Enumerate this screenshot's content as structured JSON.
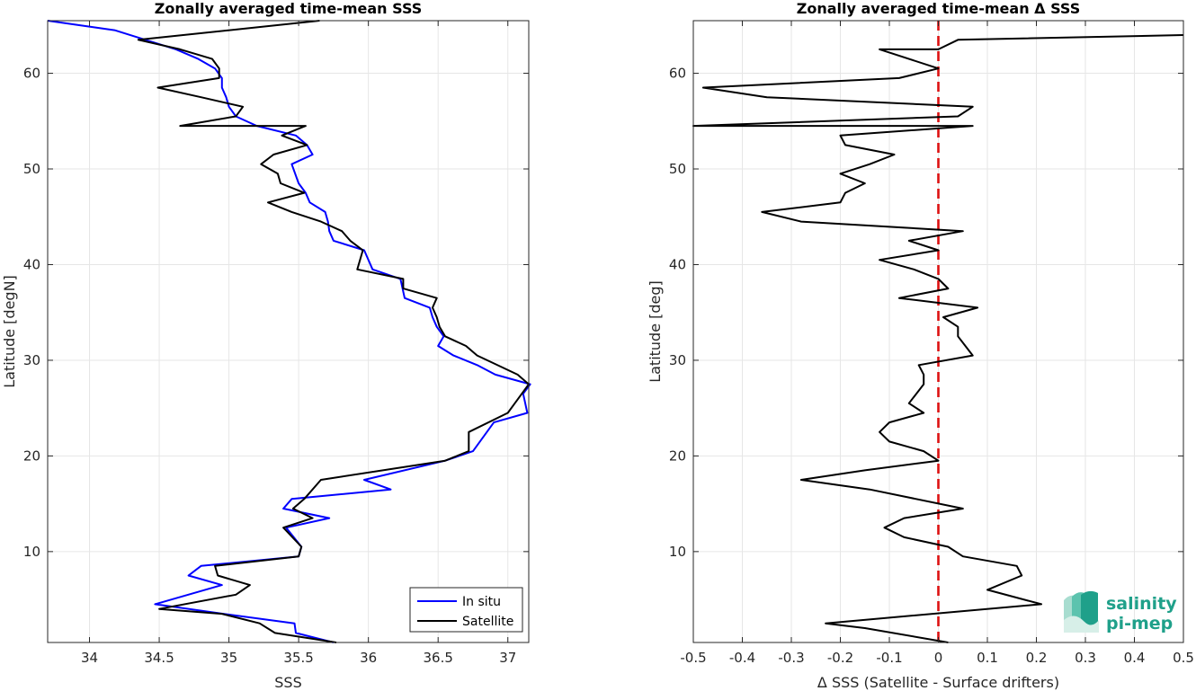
{
  "colors": {
    "insitu": "#0000ff",
    "satellite": "#000000",
    "zero_line": "#dd1111",
    "logo": "#1fa08a",
    "grid": "#e6e6e6",
    "axis": "#262626"
  },
  "logo": {
    "line1": "salinity",
    "line2": "pi-mep",
    "icon": "wave-layers-icon"
  },
  "chart_data": [
    {
      "type": "line",
      "title": "Zonally averaged time-mean SSS",
      "xlabel": "SSS",
      "ylabel": "Latitude [degN]",
      "xlim": [
        33.7,
        37.15
      ],
      "ylim": [
        0.5,
        65.5
      ],
      "xticks": [
        34,
        34.5,
        35,
        35.5,
        36,
        36.5,
        37
      ],
      "xtick_labels": [
        "34",
        "34.5",
        "35",
        "35.5",
        "36",
        "36.5",
        "37"
      ],
      "yticks": [
        10,
        20,
        30,
        40,
        50,
        60
      ],
      "ytick_labels": [
        "10",
        "20",
        "30",
        "40",
        "50",
        "60"
      ],
      "grid": true,
      "legend": "bottom-right",
      "series": [
        {
          "name": "In situ",
          "color_key": "insitu",
          "x": [
            35.75,
            35.48,
            35.47,
            34.96,
            34.47,
            34.95,
            34.71,
            34.8,
            35.5,
            35.52,
            35.41,
            35.72,
            35.39,
            35.45,
            36.16,
            35.97,
            36.55,
            36.75,
            36.9,
            37.14,
            37.11,
            37.16,
            36.91,
            36.78,
            36.61,
            36.5,
            36.54,
            36.49,
            36.46,
            36.44,
            36.26,
            36.23,
            36.03,
            35.97,
            35.75,
            35.72,
            35.71,
            35.69,
            35.58,
            35.55,
            35.5,
            35.45,
            35.6,
            35.56,
            35.48,
            35.2,
            35.05,
            35.0,
            34.98,
            34.95,
            34.95,
            34.9,
            34.78,
            34.62,
            34.18,
            33.7
          ],
          "y": [
            0.5,
            1.5,
            2.5,
            3.5,
            4.5,
            6.5,
            7.5,
            8.5,
            9.5,
            10.5,
            12.5,
            13.5,
            14.5,
            15.5,
            16.5,
            17.5,
            19.5,
            20.5,
            23.5,
            24.5,
            26.5,
            27.5,
            28.5,
            29.5,
            30.5,
            31.5,
            32.5,
            33.5,
            34.5,
            35.5,
            36.5,
            38.5,
            39.5,
            41.5,
            42.5,
            43.5,
            44.5,
            45.5,
            46.5,
            47.5,
            48.5,
            50.5,
            51.5,
            52.5,
            53.5,
            54.5,
            55.5,
            56.5,
            57.5,
            58.5,
            59.5,
            60.5,
            61.5,
            62.5,
            64.5,
            65.5
          ]
        },
        {
          "name": "Satellite",
          "color_key": "satellite",
          "x": [
            35.77,
            35.33,
            35.22,
            34.95,
            34.5,
            35.05,
            35.15,
            34.92,
            34.9,
            35.5,
            35.52,
            35.39,
            35.6,
            35.46,
            35.54,
            35.66,
            36.55,
            36.72,
            36.72,
            37.0,
            37.05,
            37.15,
            37.07,
            36.78,
            36.7,
            36.55,
            36.51,
            36.49,
            36.46,
            36.49,
            36.25,
            36.25,
            35.92,
            35.96,
            35.87,
            35.81,
            35.66,
            35.45,
            35.28,
            35.54,
            35.37,
            35.35,
            35.23,
            35.32,
            35.56,
            35.38,
            35.55,
            34.65,
            35.05,
            35.1,
            34.8,
            34.49,
            34.93,
            34.93,
            34.88,
            34.65,
            34.35,
            35.65
          ],
          "y": [
            0.5,
            1.5,
            2.5,
            3.5,
            4.0,
            5.5,
            6.5,
            7.5,
            8.5,
            9.5,
            10.5,
            12.5,
            13.5,
            14.5,
            15.5,
            17.5,
            19.5,
            20.5,
            22.5,
            24.5,
            25.5,
            27.5,
            28.5,
            30.5,
            31.5,
            32.5,
            33.5,
            34.5,
            35.5,
            36.5,
            37.5,
            38.5,
            39.5,
            41.5,
            42.5,
            43.5,
            44.5,
            45.5,
            46.5,
            47.5,
            48.5,
            49.5,
            50.5,
            51.5,
            52.5,
            53.5,
            54.5,
            54.5,
            55.5,
            56.5,
            57.5,
            58.5,
            59.5,
            60.5,
            61.5,
            62.5,
            63.5,
            65.5
          ]
        }
      ]
    },
    {
      "type": "line",
      "title": "Zonally averaged time-mean Δ SSS",
      "xlabel": "Δ SSS (Satellite - Surface drifters)",
      "ylabel": "Latitude [deg]",
      "xlim": [
        -0.5,
        0.5
      ],
      "ylim": [
        0.5,
        65.5
      ],
      "xticks": [
        -0.5,
        -0.4,
        -0.3,
        -0.2,
        -0.1,
        0,
        0.1,
        0.2,
        0.3,
        0.4,
        0.5
      ],
      "xtick_labels": [
        "-0.5",
        "-0.4",
        "-0.3",
        "-0.2",
        "-0.1",
        "0",
        "0.1",
        "0.2",
        "0.3",
        "0.4",
        "0.5"
      ],
      "yticks": [
        10,
        20,
        30,
        40,
        50,
        60
      ],
      "ytick_labels": [
        "10",
        "20",
        "30",
        "40",
        "50",
        "60"
      ],
      "grid": true,
      "reference_line": {
        "x": 0,
        "style": "dashed"
      },
      "series": [
        {
          "color_key": "satellite",
          "x": [
            0.02,
            -0.15,
            -0.23,
            0.21,
            0.1,
            0.17,
            0.16,
            0.05,
            0.02,
            -0.07,
            -0.11,
            -0.07,
            0.05,
            -0.14,
            -0.28,
            -0.15,
            0.0,
            -0.03,
            -0.1,
            -0.12,
            -0.1,
            -0.03,
            -0.06,
            -0.03,
            -0.03,
            -0.04,
            0.07,
            0.04,
            0.04,
            0.01,
            0.08,
            -0.08,
            0.02,
            0.0,
            -0.05,
            -0.12,
            0.0,
            -0.06,
            0.05,
            -0.28,
            -0.36,
            -0.2,
            -0.19,
            -0.15,
            -0.2,
            -0.14,
            -0.09,
            -0.19,
            -0.2,
            0.07,
            -0.5,
            0.04,
            0.07,
            -0.35,
            -0.48,
            -0.08,
            0.0,
            -0.12,
            0.0,
            0.04,
            0.5
          ],
          "y": [
            0.5,
            2.0,
            2.5,
            4.5,
            6.0,
            7.5,
            8.5,
            9.5,
            10.5,
            11.5,
            12.5,
            13.5,
            14.5,
            16.5,
            17.5,
            18.5,
            19.5,
            20.5,
            21.5,
            22.5,
            23.5,
            24.5,
            25.5,
            27.5,
            28.5,
            29.5,
            30.5,
            32.5,
            33.5,
            34.5,
            35.5,
            36.5,
            37.5,
            38.5,
            39.5,
            40.5,
            41.5,
            42.5,
            43.5,
            44.5,
            45.5,
            46.5,
            47.5,
            48.5,
            49.5,
            50.5,
            51.5,
            52.5,
            53.5,
            54.5,
            54.5,
            55.5,
            56.5,
            57.5,
            58.5,
            59.5,
            60.5,
            62.5,
            62.5,
            63.5,
            64.0
          ]
        }
      ]
    }
  ]
}
